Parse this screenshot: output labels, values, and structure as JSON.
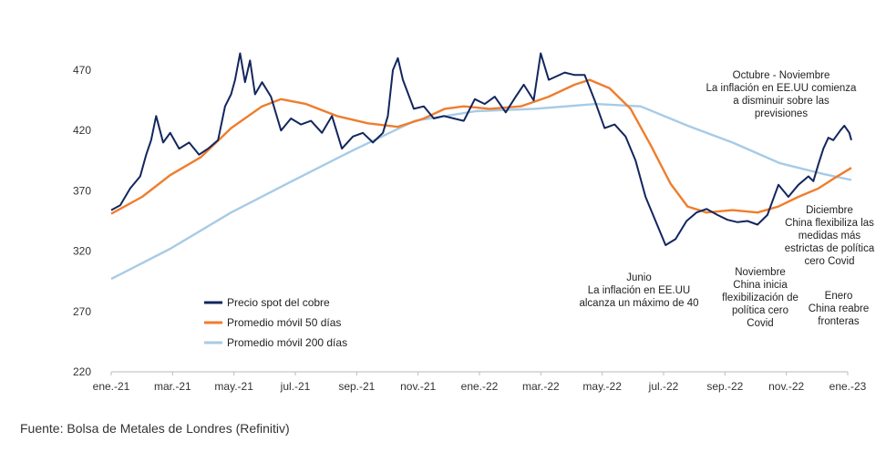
{
  "chart_data": {
    "type": "line",
    "title": "",
    "xlabel": "",
    "ylabel": "",
    "ylim": [
      220,
      480
    ],
    "yticks": [
      220,
      270,
      320,
      370,
      420,
      470
    ],
    "x_tick_labels": [
      "ene.-21",
      "mar.-21",
      "may.-21",
      "jul.-21",
      "sep.-21",
      "nov.-21",
      "ene.-22",
      "mar.-22",
      "may.-22",
      "jul.-22",
      "sep.-22",
      "nov.-22",
      "ene.-23"
    ],
    "x_range": [
      "2021-01-01",
      "2023-01-01"
    ],
    "legend_position": "bottom-left",
    "grid": false,
    "series": [
      {
        "name": "Precio spot del cobre",
        "color": "#13265e",
        "points": [
          [
            "2021-01-01",
            354
          ],
          [
            "2021-01-10",
            358
          ],
          [
            "2021-01-20",
            372
          ],
          [
            "2021-01-30",
            382
          ],
          [
            "2021-02-05",
            400
          ],
          [
            "2021-02-10",
            412
          ],
          [
            "2021-02-15",
            432
          ],
          [
            "2021-02-22",
            410
          ],
          [
            "2021-03-01",
            418
          ],
          [
            "2021-03-10",
            405
          ],
          [
            "2021-03-20",
            410
          ],
          [
            "2021-03-30",
            400
          ],
          [
            "2021-04-08",
            405
          ],
          [
            "2021-04-18",
            412
          ],
          [
            "2021-04-25",
            440
          ],
          [
            "2021-05-01",
            450
          ],
          [
            "2021-05-05",
            462
          ],
          [
            "2021-05-10",
            484
          ],
          [
            "2021-05-15",
            460
          ],
          [
            "2021-05-20",
            478
          ],
          [
            "2021-05-25",
            450
          ],
          [
            "2021-06-01",
            460
          ],
          [
            "2021-06-10",
            448
          ],
          [
            "2021-06-20",
            420
          ],
          [
            "2021-06-30",
            430
          ],
          [
            "2021-07-10",
            425
          ],
          [
            "2021-07-20",
            428
          ],
          [
            "2021-07-31",
            418
          ],
          [
            "2021-08-10",
            432
          ],
          [
            "2021-08-20",
            405
          ],
          [
            "2021-08-31",
            415
          ],
          [
            "2021-09-10",
            418
          ],
          [
            "2021-09-20",
            410
          ],
          [
            "2021-09-30",
            418
          ],
          [
            "2021-10-05",
            432
          ],
          [
            "2021-10-10",
            470
          ],
          [
            "2021-10-15",
            480
          ],
          [
            "2021-10-20",
            462
          ],
          [
            "2021-10-31",
            438
          ],
          [
            "2021-11-10",
            440
          ],
          [
            "2021-11-20",
            430
          ],
          [
            "2021-11-30",
            432
          ],
          [
            "2021-12-10",
            430
          ],
          [
            "2021-12-20",
            428
          ],
          [
            "2021-12-31",
            446
          ],
          [
            "2022-01-10",
            442
          ],
          [
            "2022-01-20",
            448
          ],
          [
            "2022-01-31",
            435
          ],
          [
            "2022-02-10",
            448
          ],
          [
            "2022-02-18",
            458
          ],
          [
            "2022-02-28",
            445
          ],
          [
            "2022-03-07",
            484
          ],
          [
            "2022-03-15",
            462
          ],
          [
            "2022-03-31",
            468
          ],
          [
            "2022-04-10",
            466
          ],
          [
            "2022-04-20",
            466
          ],
          [
            "2022-04-30",
            445
          ],
          [
            "2022-05-10",
            422
          ],
          [
            "2022-05-20",
            425
          ],
          [
            "2022-05-31",
            415
          ],
          [
            "2022-06-10",
            395
          ],
          [
            "2022-06-20",
            365
          ],
          [
            "2022-06-30",
            345
          ],
          [
            "2022-07-10",
            325
          ],
          [
            "2022-07-20",
            330
          ],
          [
            "2022-07-31",
            345
          ],
          [
            "2022-08-10",
            352
          ],
          [
            "2022-08-20",
            355
          ],
          [
            "2022-08-31",
            350
          ],
          [
            "2022-09-10",
            346
          ],
          [
            "2022-09-20",
            344
          ],
          [
            "2022-09-30",
            345
          ],
          [
            "2022-10-10",
            342
          ],
          [
            "2022-10-20",
            350
          ],
          [
            "2022-10-31",
            375
          ],
          [
            "2022-11-10",
            365
          ],
          [
            "2022-11-20",
            375
          ],
          [
            "2022-11-30",
            382
          ],
          [
            "2022-12-05",
            378
          ],
          [
            "2022-12-10",
            392
          ],
          [
            "2022-12-15",
            405
          ],
          [
            "2022-12-20",
            414
          ],
          [
            "2022-12-25",
            412
          ],
          [
            "2023-01-01",
            420
          ],
          [
            "2023-01-05",
            424
          ],
          [
            "2023-01-10",
            418
          ],
          [
            "2023-01-12",
            412
          ]
        ]
      },
      {
        "name": "Promedio móvil 50 días",
        "color": "#ef7d2d",
        "points": [
          [
            "2021-01-01",
            351
          ],
          [
            "2021-02-01",
            365
          ],
          [
            "2021-03-01",
            383
          ],
          [
            "2021-04-01",
            398
          ],
          [
            "2021-05-01",
            422
          ],
          [
            "2021-06-01",
            440
          ],
          [
            "2021-06-20",
            446
          ],
          [
            "2021-07-15",
            442
          ],
          [
            "2021-08-15",
            432
          ],
          [
            "2021-09-15",
            426
          ],
          [
            "2021-10-15",
            423
          ],
          [
            "2021-11-10",
            430
          ],
          [
            "2021-12-01",
            438
          ],
          [
            "2021-12-20",
            440
          ],
          [
            "2022-01-15",
            438
          ],
          [
            "2022-02-15",
            440
          ],
          [
            "2022-03-15",
            448
          ],
          [
            "2022-04-10",
            458
          ],
          [
            "2022-04-25",
            462
          ],
          [
            "2022-05-15",
            455
          ],
          [
            "2022-06-05",
            438
          ],
          [
            "2022-06-25",
            408
          ],
          [
            "2022-07-15",
            376
          ],
          [
            "2022-08-01",
            357
          ],
          [
            "2022-08-20",
            352
          ],
          [
            "2022-09-15",
            354
          ],
          [
            "2022-10-10",
            352
          ],
          [
            "2022-10-31",
            357
          ],
          [
            "2022-11-20",
            365
          ],
          [
            "2022-12-10",
            372
          ],
          [
            "2022-12-25",
            380
          ],
          [
            "2023-01-12",
            389
          ]
        ]
      },
      {
        "name": "Promedio móvil 200 días",
        "color": "#a7cbe6",
        "points": [
          [
            "2021-01-01",
            297
          ],
          [
            "2021-03-01",
            322
          ],
          [
            "2021-05-01",
            352
          ],
          [
            "2021-07-01",
            378
          ],
          [
            "2021-09-01",
            404
          ],
          [
            "2021-11-01",
            428
          ],
          [
            "2022-01-01",
            436
          ],
          [
            "2022-03-01",
            438
          ],
          [
            "2022-05-01",
            442
          ],
          [
            "2022-06-15",
            440
          ],
          [
            "2022-08-01",
            424
          ],
          [
            "2022-09-15",
            410
          ],
          [
            "2022-11-01",
            393
          ],
          [
            "2022-12-15",
            384
          ],
          [
            "2023-01-12",
            379
          ]
        ]
      }
    ],
    "annotations": [
      {
        "id": "octubre",
        "lines": [
          "Octubre - Noviembre",
          "La inflación en EE.UU comienza",
          "a disminuir sobre las",
          "previsiones"
        ]
      },
      {
        "id": "diciembre",
        "lines": [
          "Diciembre",
          "China flexibiliza las",
          "medidas  más",
          "estrictas de política",
          "cero Covid"
        ]
      },
      {
        "id": "junio",
        "lines": [
          "Junio",
          "La inflación en EE.UU",
          "alcanza un máximo  de 40"
        ]
      },
      {
        "id": "noviembre",
        "lines": [
          "Noviembre",
          "China inicia",
          "flexibilización  de",
          "política cero",
          "Covid"
        ]
      },
      {
        "id": "enero",
        "lines": [
          "Enero",
          "China reabre",
          "fronteras"
        ]
      }
    ]
  },
  "footer": {
    "source": "Fuente: Bolsa de Metales de Londres (Refinitiv)"
  }
}
